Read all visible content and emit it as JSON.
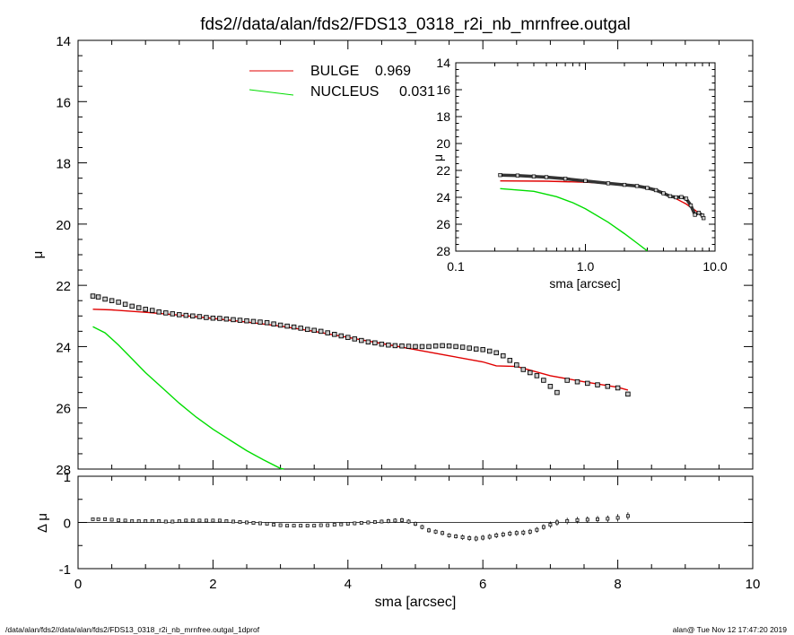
{
  "title": "fds2//data/alan/fds2/FDS13_0318_r2i_nb_mrnfree.outgal",
  "footer": {
    "left": "/data/alan/fds2//data/alan/fds2/FDS13_0318_r2i_nb_mrnfree.outgal_1dprof",
    "right": "alan@  Tue Nov 12 17:47:20 2019"
  },
  "colors": {
    "bulge": "#e00000",
    "nucleus": "#00dd00",
    "data": "#000000",
    "data_fill": "#cccccc"
  },
  "legend": {
    "entries": [
      {
        "name": "BULGE",
        "value": "0.969",
        "color": "#e00000"
      },
      {
        "name": "NUCLEUS",
        "value": "0.031",
        "color": "#00dd00"
      }
    ]
  },
  "chart_data": [
    {
      "type": "scatter",
      "panel": "main",
      "xlabel": "",
      "ylabel": "μ",
      "xlim": [
        0,
        10
      ],
      "ylim": [
        28,
        14
      ],
      "y_inverted": true,
      "x_ticks": [],
      "y_ticks": [
        "14",
        "16",
        "18",
        "20",
        "22",
        "24",
        "26",
        "28"
      ],
      "series": [
        {
          "name": "data",
          "x": [
            0.22,
            0.3,
            0.4,
            0.5,
            0.6,
            0.7,
            0.8,
            0.9,
            1.0,
            1.1,
            1.2,
            1.3,
            1.4,
            1.5,
            1.6,
            1.7,
            1.8,
            1.9,
            2.0,
            2.1,
            2.2,
            2.3,
            2.4,
            2.5,
            2.6,
            2.7,
            2.8,
            2.9,
            3.0,
            3.1,
            3.2,
            3.3,
            3.4,
            3.5,
            3.6,
            3.7,
            3.8,
            3.9,
            4.0,
            4.1,
            4.2,
            4.3,
            4.4,
            4.5,
            4.6,
            4.7,
            4.8,
            4.9,
            5.0,
            5.1,
            5.2,
            5.3,
            5.4,
            5.5,
            5.6,
            5.7,
            5.8,
            5.9,
            6.0,
            6.1,
            6.2,
            6.3,
            6.4,
            6.5,
            6.6,
            6.7,
            6.8,
            6.9,
            7.0,
            7.1,
            7.25,
            7.4,
            7.55,
            7.7,
            7.85,
            8.0,
            8.15
          ],
          "y": [
            22.35,
            22.38,
            22.45,
            22.5,
            22.55,
            22.62,
            22.68,
            22.73,
            22.78,
            22.82,
            22.87,
            22.9,
            22.93,
            22.96,
            22.98,
            23.0,
            23.02,
            23.05,
            23.07,
            23.08,
            23.1,
            23.12,
            23.14,
            23.16,
            23.18,
            23.2,
            23.22,
            23.26,
            23.3,
            23.33,
            23.36,
            23.4,
            23.44,
            23.47,
            23.5,
            23.55,
            23.6,
            23.65,
            23.7,
            23.75,
            23.8,
            23.85,
            23.88,
            23.92,
            23.95,
            23.97,
            23.98,
            23.99,
            24.0,
            24.0,
            24.0,
            23.98,
            23.97,
            23.98,
            24.0,
            24.02,
            24.05,
            24.08,
            24.1,
            24.15,
            24.2,
            24.3,
            24.45,
            24.6,
            24.75,
            24.85,
            24.95,
            25.1,
            25.3,
            25.5,
            25.1,
            25.15,
            25.2,
            25.25,
            25.3,
            25.35,
            25.55
          ]
        },
        {
          "name": "BULGE",
          "x": [
            0.22,
            0.5,
            1.0,
            1.5,
            2.0,
            2.5,
            3.0,
            3.5,
            4.0,
            4.5,
            5.0,
            5.5,
            6.0,
            6.2,
            6.5,
            7.0,
            7.5,
            8.0,
            8.15
          ],
          "y": [
            22.78,
            22.8,
            22.88,
            22.97,
            23.08,
            23.2,
            23.33,
            23.5,
            23.7,
            23.9,
            24.1,
            24.3,
            24.5,
            24.63,
            24.65,
            24.95,
            25.15,
            25.33,
            25.42
          ]
        },
        {
          "name": "NUCLEUS",
          "x": [
            0.22,
            0.4,
            0.6,
            0.8,
            1.0,
            1.25,
            1.5,
            1.75,
            2.0,
            2.25,
            2.5,
            2.75,
            3.0,
            3.05
          ],
          "y": [
            23.35,
            23.55,
            23.95,
            24.4,
            24.85,
            25.35,
            25.85,
            26.3,
            26.7,
            27.05,
            27.4,
            27.7,
            27.98,
            28.0
          ]
        }
      ]
    },
    {
      "type": "scatter",
      "panel": "inset",
      "xlabel": "sma [arcsec]",
      "ylabel": "μ",
      "x_log": true,
      "xlim": [
        0.1,
        10
      ],
      "ylim": [
        28,
        14
      ],
      "y_inverted": true,
      "x_ticks": [
        "0.1",
        "1.0",
        "10.0"
      ],
      "y_ticks": [
        "14",
        "16",
        "18",
        "20",
        "22",
        "24",
        "26",
        "28"
      ],
      "series": [
        {
          "name": "data",
          "x": [
            0.22,
            0.3,
            0.4,
            0.5,
            0.7,
            1.0,
            1.5,
            2.0,
            2.5,
            3.0,
            3.5,
            4.0,
            4.5,
            5.0,
            5.5,
            6.0,
            6.5,
            7.0,
            7.5,
            8.0,
            8.15
          ],
          "y": [
            22.35,
            22.38,
            22.45,
            22.5,
            22.62,
            22.78,
            22.96,
            23.07,
            23.16,
            23.3,
            23.47,
            23.7,
            23.92,
            24.0,
            23.98,
            24.1,
            24.6,
            25.3,
            25.15,
            25.35,
            25.55
          ]
        },
        {
          "name": "BULGE",
          "x": [
            0.22,
            0.5,
            1.0,
            1.5,
            2.0,
            2.5,
            3.0,
            4.0,
            5.0,
            6.0,
            7.0,
            8.15
          ],
          "y": [
            22.78,
            22.8,
            22.88,
            22.97,
            23.08,
            23.2,
            23.33,
            23.7,
            24.1,
            24.5,
            24.95,
            25.42
          ]
        },
        {
          "name": "NUCLEUS",
          "x": [
            0.22,
            0.4,
            0.6,
            0.8,
            1.0,
            1.5,
            2.0,
            2.5,
            3.0
          ],
          "y": [
            23.35,
            23.55,
            23.95,
            24.4,
            24.85,
            25.85,
            26.7,
            27.4,
            27.98
          ]
        }
      ]
    },
    {
      "type": "scatter",
      "panel": "residual",
      "xlabel": "sma [arcsec]",
      "ylabel": "Δ μ",
      "xlim": [
        0,
        10
      ],
      "ylim": [
        -1,
        1
      ],
      "zero_line": true,
      "x_ticks": [
        "0",
        "2",
        "4",
        "6",
        "8",
        "10"
      ],
      "y_ticks": [
        "-1",
        "0",
        "1"
      ],
      "series": [
        {
          "name": "residual",
          "x": [
            0.22,
            0.3,
            0.4,
            0.5,
            0.6,
            0.7,
            0.8,
            0.9,
            1.0,
            1.1,
            1.2,
            1.3,
            1.4,
            1.5,
            1.6,
            1.7,
            1.8,
            1.9,
            2.0,
            2.1,
            2.2,
            2.3,
            2.4,
            2.5,
            2.6,
            2.7,
            2.8,
            2.9,
            3.0,
            3.1,
            3.2,
            3.3,
            3.4,
            3.5,
            3.6,
            3.7,
            3.8,
            3.9,
            4.0,
            4.1,
            4.2,
            4.3,
            4.4,
            4.5,
            4.6,
            4.7,
            4.8,
            4.9,
            5.0,
            5.1,
            5.2,
            5.3,
            5.4,
            5.5,
            5.6,
            5.7,
            5.8,
            5.9,
            6.0,
            6.1,
            6.2,
            6.3,
            6.4,
            6.5,
            6.6,
            6.7,
            6.8,
            6.9,
            7.0,
            7.1,
            7.25,
            7.4,
            7.55,
            7.7,
            7.85,
            8.0,
            8.15
          ],
          "y": [
            0.07,
            0.07,
            0.07,
            0.06,
            0.05,
            0.04,
            0.03,
            0.03,
            0.03,
            0.03,
            0.03,
            0.02,
            0.02,
            0.03,
            0.04,
            0.04,
            0.04,
            0.04,
            0.04,
            0.04,
            0.03,
            0.02,
            0.01,
            0.0,
            -0.01,
            -0.02,
            -0.03,
            -0.05,
            -0.06,
            -0.07,
            -0.07,
            -0.07,
            -0.07,
            -0.07,
            -0.06,
            -0.06,
            -0.05,
            -0.04,
            -0.03,
            -0.02,
            -0.01,
            0.0,
            0.01,
            0.02,
            0.03,
            0.04,
            0.05,
            0.02,
            -0.03,
            -0.1,
            -0.17,
            -0.2,
            -0.23,
            -0.28,
            -0.3,
            -0.32,
            -0.34,
            -0.35,
            -0.33,
            -0.31,
            -0.28,
            -0.26,
            -0.24,
            -0.23,
            -0.22,
            -0.2,
            -0.16,
            -0.1,
            -0.05,
            0.0,
            0.03,
            0.05,
            0.06,
            0.07,
            0.08,
            0.1,
            0.14
          ],
          "err": [
            0.02,
            0.02,
            0.02,
            0.02,
            0.02,
            0.02,
            0.02,
            0.02,
            0.02,
            0.02,
            0.02,
            0.02,
            0.02,
            0.02,
            0.02,
            0.02,
            0.02,
            0.02,
            0.02,
            0.02,
            0.02,
            0.02,
            0.02,
            0.02,
            0.02,
            0.03,
            0.03,
            0.03,
            0.03,
            0.03,
            0.03,
            0.03,
            0.03,
            0.03,
            0.03,
            0.03,
            0.03,
            0.03,
            0.04,
            0.04,
            0.04,
            0.04,
            0.04,
            0.04,
            0.05,
            0.05,
            0.05,
            0.05,
            0.05,
            0.05,
            0.05,
            0.05,
            0.05,
            0.05,
            0.05,
            0.06,
            0.06,
            0.06,
            0.06,
            0.06,
            0.06,
            0.06,
            0.06,
            0.06,
            0.06,
            0.06,
            0.06,
            0.06,
            0.07,
            0.07,
            0.07,
            0.07,
            0.07,
            0.07,
            0.07,
            0.08,
            0.08
          ]
        }
      ]
    }
  ]
}
